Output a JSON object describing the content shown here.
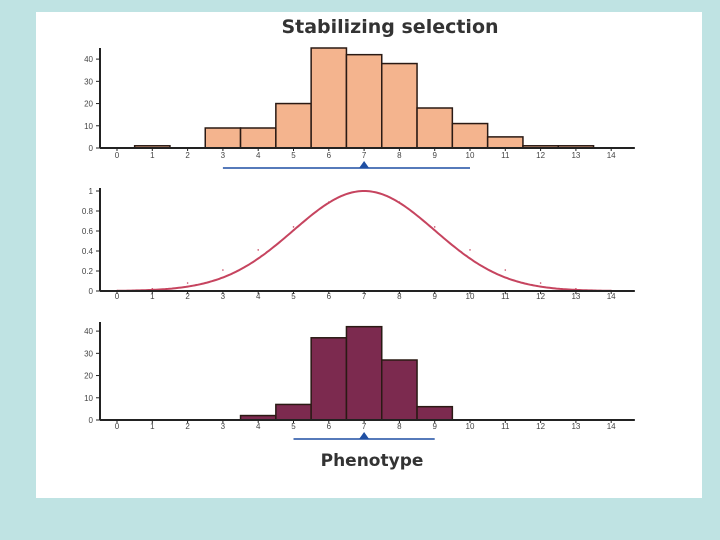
{
  "title": "Stabilizing selection",
  "xlabel": "Phenotype",
  "colors": {
    "page_bg": "#bfe3e3",
    "panel_bg": "#ffffff",
    "bar_top": "#f4b48e",
    "bar_bottom": "#7c2a4f",
    "curve": "#c6445f",
    "mean_line": "#1f4fa3",
    "axis": "#222222"
  },
  "chart_data": [
    {
      "type": "bar",
      "categories": [
        "0",
        "1",
        "2",
        "3",
        "4",
        "5",
        "6",
        "7",
        "8",
        "9",
        "10",
        "11",
        "12",
        "13",
        "14"
      ],
      "values": [
        0,
        1,
        0,
        9,
        9,
        20,
        45,
        42,
        38,
        18,
        11,
        5,
        1,
        1,
        0
      ],
      "ylim": [
        0,
        45
      ],
      "yticks": [
        "0",
        "10",
        "20",
        "30",
        "40"
      ],
      "mean_marker": 7,
      "range_line": [
        3,
        10
      ]
    },
    {
      "type": "line",
      "x": [
        0,
        1,
        2,
        3,
        4,
        5,
        6,
        7,
        8,
        9,
        10,
        11,
        12,
        13,
        14
      ],
      "values": [
        0.004,
        0.022,
        0.08,
        0.21,
        0.411,
        0.641,
        0.889,
        1.0,
        0.889,
        0.641,
        0.411,
        0.21,
        0.08,
        0.022,
        0.004
      ],
      "ylim": [
        0,
        1
      ],
      "yticks": [
        "0",
        "0.2",
        "0.4",
        "0.6",
        "0.8",
        "1"
      ]
    },
    {
      "type": "bar",
      "categories": [
        "0",
        "1",
        "2",
        "3",
        "4",
        "5",
        "6",
        "7",
        "8",
        "9",
        "10",
        "11",
        "12",
        "13",
        "14"
      ],
      "values": [
        0,
        0,
        0,
        0,
        2,
        7,
        37,
        42,
        27,
        6,
        0,
        0,
        0,
        0,
        0
      ],
      "ylim": [
        0,
        45
      ],
      "yticks": [
        "0",
        "10",
        "20",
        "30",
        "40"
      ],
      "mean_marker": 7,
      "range_line": [
        5,
        9
      ]
    }
  ]
}
